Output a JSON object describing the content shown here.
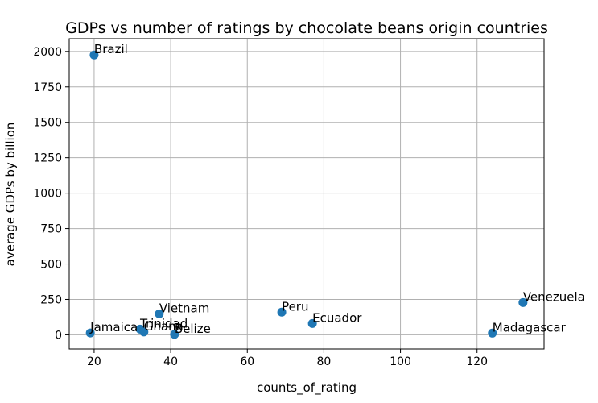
{
  "chart_data": {
    "type": "scatter",
    "title": "GDPs vs number of ratings by chocolate beans origin countries",
    "xlabel": "counts_of_rating",
    "ylabel": "average GDPs by billion",
    "xlim": [
      13.5,
      137.5
    ],
    "ylim": [
      -100,
      2090
    ],
    "xticks": [
      20,
      40,
      60,
      80,
      100,
      120
    ],
    "yticks": [
      0,
      250,
      500,
      750,
      1000,
      1250,
      1500,
      1750,
      2000
    ],
    "grid": true,
    "legend": "none",
    "marker_color": "#1f77b4",
    "points": [
      {
        "label": "Brazil",
        "x": 20,
        "y": 1975
      },
      {
        "label": "Jamaica",
        "x": 19,
        "y": 13
      },
      {
        "label": "Trinidad",
        "x": 32,
        "y": 40
      },
      {
        "label": "Ghana",
        "x": 33,
        "y": 20
      },
      {
        "label": "Vietnam",
        "x": 37,
        "y": 148
      },
      {
        "label": "Belize",
        "x": 41,
        "y": 3
      },
      {
        "label": "Peru",
        "x": 69,
        "y": 160
      },
      {
        "label": "Ecuador",
        "x": 77,
        "y": 80
      },
      {
        "label": "Madagascar",
        "x": 124,
        "y": 12
      },
      {
        "label": "Venezuela",
        "x": 132,
        "y": 228
      }
    ]
  }
}
